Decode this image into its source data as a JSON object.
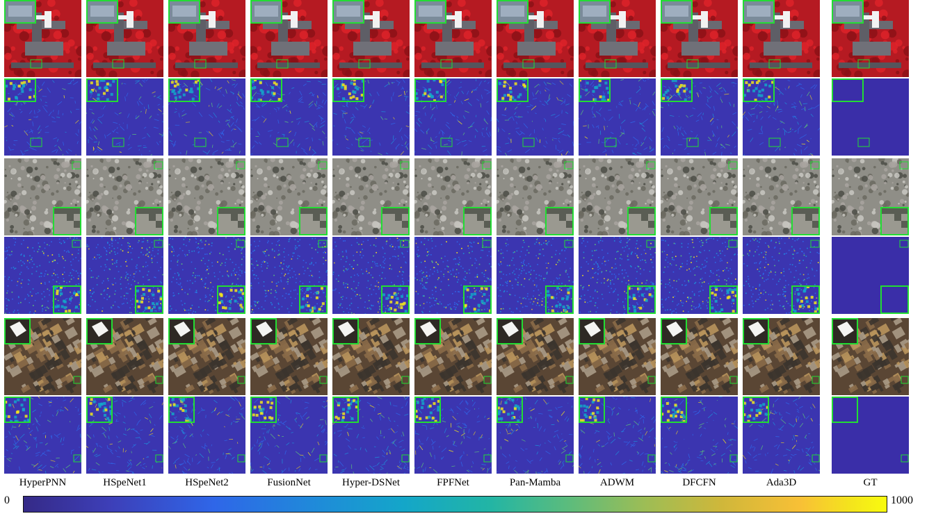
{
  "methods": [
    "HyperPNN",
    "HSpeNet1",
    "HSpeNet2",
    "FusionNet",
    "Hyper-DSNet",
    "FPFNet",
    "Pan-Mamba",
    "ADWM",
    "DFCFN",
    "Ada3D",
    "GT"
  ],
  "colorbar": {
    "min_label": "0",
    "max_label": "1000",
    "colormap": "parula"
  },
  "rows": [
    {
      "kind": "false-color-image",
      "scene": "urban-red-vegetation"
    },
    {
      "kind": "error-map",
      "scene": "urban-red-vegetation"
    },
    {
      "kind": "true-color-image",
      "scene": "rocky-terrain"
    },
    {
      "kind": "error-map",
      "scene": "rocky-terrain"
    },
    {
      "kind": "true-color-image",
      "scene": "dense-city"
    },
    {
      "kind": "error-map",
      "scene": "dense-city"
    }
  ],
  "colors": {
    "zoom_box": "#22dd33",
    "error_background": "#3b35b0",
    "gt_error_background": "#3a2ea8",
    "vegetation_red": "#c8141c",
    "colormap_low": "#352a87",
    "colormap_high": "#f9fb0e"
  }
}
